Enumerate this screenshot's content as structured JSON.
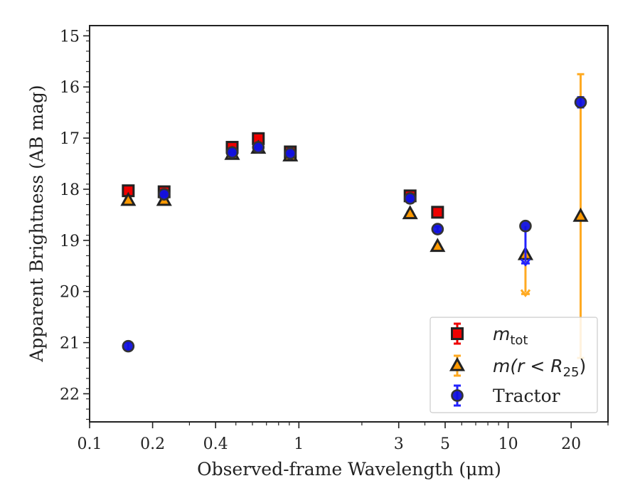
{
  "chart_data": {
    "type": "scatter",
    "xlabel": "Observed-frame Wavelength (μm)",
    "ylabel": "Apparent Brightness (AB mag)",
    "xscale": "log",
    "xlim": [
      0.1,
      30
    ],
    "ylim": [
      22.55,
      14.8
    ],
    "y_inverted": true,
    "x_ticks": [
      {
        "value": 0.1,
        "label": "0.1"
      },
      {
        "value": 0.2,
        "label": "0.2"
      },
      {
        "value": 0.4,
        "label": "0.4"
      },
      {
        "value": 1,
        "label": "1"
      },
      {
        "value": 3,
        "label": "3"
      },
      {
        "value": 5,
        "label": "5"
      },
      {
        "value": 10,
        "label": "10"
      },
      {
        "value": 20,
        "label": "20"
      }
    ],
    "y_ticks": [
      15,
      16,
      17,
      18,
      19,
      20,
      21,
      22
    ],
    "legend_position": "lower-right",
    "grid": false,
    "series": [
      {
        "name": "m_tot",
        "legend_label": {
          "base": "m",
          "sub": "tot"
        },
        "marker": "square",
        "color": "#ee0000",
        "edge": "#222222",
        "errcolor": "#ee0000",
        "points": [
          {
            "x": 0.153,
            "y": 18.03,
            "err": 0.05
          },
          {
            "x": 0.227,
            "y": 18.05,
            "err": 0.04
          },
          {
            "x": 0.48,
            "y": 17.18,
            "err": 0.04
          },
          {
            "x": 0.64,
            "y": 17.01,
            "err": 0.04
          },
          {
            "x": 0.91,
            "y": 17.27,
            "err": 0.04
          },
          {
            "x": 3.4,
            "y": 18.13,
            "err": 0.04
          },
          {
            "x": 4.6,
            "y": 18.45,
            "err": 0.04
          }
        ]
      },
      {
        "name": "m(r < R25)",
        "legend_label": {
          "pre": "m(r < R",
          "sub": "25",
          "post": ")"
        },
        "marker": "triangle",
        "color": "#ff9900",
        "edge": "#222222",
        "errcolor": "#ffaa22",
        "points": [
          {
            "x": 0.153,
            "y": 18.22,
            "err": 0.04
          },
          {
            "x": 0.227,
            "y": 18.22,
            "err": 0.04
          },
          {
            "x": 0.48,
            "y": 17.32,
            "err": 0.03
          },
          {
            "x": 0.64,
            "y": 17.2,
            "err": 0.03
          },
          {
            "x": 0.91,
            "y": 17.35,
            "err": 0.03
          },
          {
            "x": 3.4,
            "y": 18.48,
            "err": 0.04
          },
          {
            "x": 4.6,
            "y": 19.12,
            "err": 0.04
          },
          {
            "x": 12.1,
            "y": 19.28,
            "upper_limit_to": 20.05
          },
          {
            "x": 22.2,
            "y": 18.53,
            "err_low": 15.75,
            "err_high": 21.3
          }
        ]
      },
      {
        "name": "Tractor",
        "marker": "circle",
        "color": "#1111dd",
        "edge": "#333333",
        "errcolor": "#2222ff",
        "points": [
          {
            "x": 0.153,
            "y": 21.07,
            "err": 0.07
          },
          {
            "x": 0.227,
            "y": 18.1,
            "err": 0.04
          },
          {
            "x": 0.48,
            "y": 17.28,
            "err": 0.04
          },
          {
            "x": 0.64,
            "y": 17.18,
            "err": 0.03
          },
          {
            "x": 0.91,
            "y": 17.3,
            "err": 0.03
          },
          {
            "x": 3.4,
            "y": 18.18,
            "err": 0.04
          },
          {
            "x": 4.6,
            "y": 18.78,
            "err": 0.05
          },
          {
            "x": 12.1,
            "y": 18.72,
            "upper_limit_to": 19.45
          },
          {
            "x": 22.2,
            "y": 16.3,
            "err": 0.1
          }
        ]
      }
    ]
  }
}
